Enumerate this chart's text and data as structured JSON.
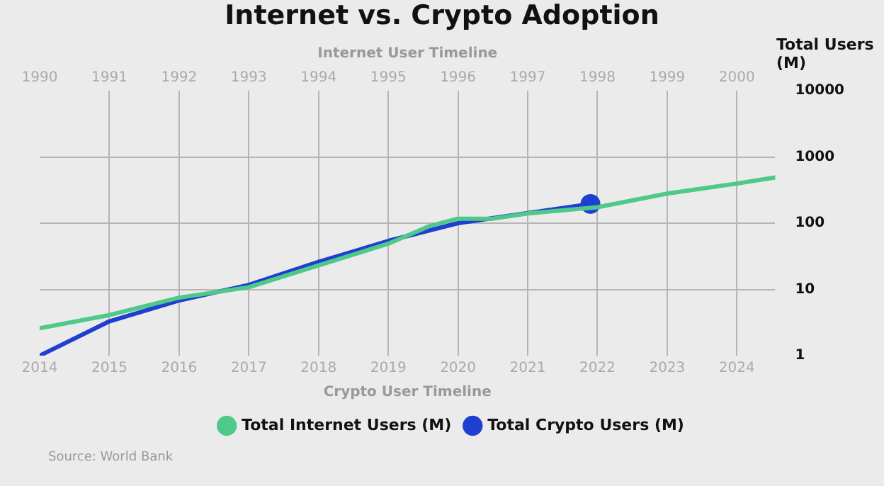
{
  "chart_data": {
    "type": "line",
    "title": "Internet vs. Crypto Adoption",
    "xlabel": "Crypto User Timeline",
    "x2label": "Internet User Timeline",
    "ylabel": "Total Users (M)",
    "xlim": [
      2014,
      2024.55
    ],
    "xticks": [
      2014,
      2015,
      2016,
      2017,
      2018,
      2019,
      2020,
      2021,
      2022,
      2023,
      2024
    ],
    "x2lim": [
      1990,
      2000.55
    ],
    "x2ticks": [
      1990,
      1991,
      1992,
      1993,
      1994,
      1995,
      1996,
      1997,
      1998,
      1999,
      2000
    ],
    "ylim": [
      1,
      10000
    ],
    "yticks": [
      1,
      10,
      100,
      1000,
      10000
    ],
    "log": "y",
    "grid": true,
    "legend": "bottom",
    "series": [
      {
        "name": "Total Internet Users (M)",
        "color": "#4fc98a",
        "axis": "x2",
        "x": [
          1990,
          1991,
          1992,
          1993,
          1994,
          1995,
          1995.6,
          1996,
          1996.5,
          1997,
          1998,
          1999,
          2000,
          2000.55
        ],
        "values": [
          2.6,
          4.1,
          7.5,
          10.8,
          23,
          49,
          91,
          117,
          117,
          140,
          174,
          280,
          396,
          490
        ]
      },
      {
        "name": "Total Crypto Users (M)",
        "color": "#1f3fd1",
        "x": [
          2014,
          2015,
          2016,
          2017,
          2018,
          2019,
          2020,
          2021,
          2021.9
        ],
        "values": [
          1,
          3.3,
          6.8,
          11.7,
          26,
          54,
          100,
          142,
          195
        ]
      },
      {
        "type": "scatter",
        "color": "#1f3fd1",
        "marker": "circle",
        "x": [
          2021.9
        ],
        "values": [
          195
        ]
      }
    ],
    "annotations": [
      "Source: World Bank"
    ]
  }
}
